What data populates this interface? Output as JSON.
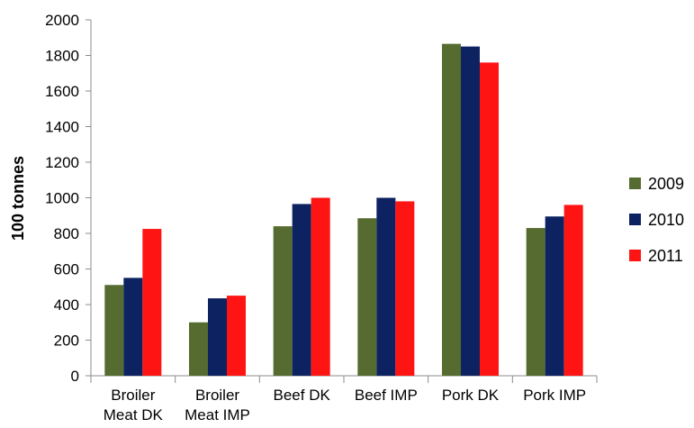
{
  "chart_data": {
    "type": "bar",
    "title": "",
    "xlabel": "",
    "ylabel": "100 tonnes",
    "ylim": [
      0,
      2000
    ],
    "yticks": [
      0,
      200,
      400,
      600,
      800,
      1000,
      1200,
      1400,
      1600,
      1800,
      2000
    ],
    "categories": [
      [
        "Broiler",
        "Meat DK"
      ],
      [
        "Broiler",
        "Meat IMP"
      ],
      [
        "Beef DK"
      ],
      [
        "Beef IMP"
      ],
      [
        "Pork DK"
      ],
      [
        "Pork IMP"
      ]
    ],
    "series": [
      {
        "name": "2009",
        "color": "#556b2f",
        "values": [
          510,
          300,
          840,
          885,
          1865,
          830
        ]
      },
      {
        "name": "2010",
        "color": "#0d2261",
        "values": [
          550,
          435,
          965,
          1000,
          1850,
          895
        ]
      },
      {
        "name": "2011",
        "color": "#ff1414",
        "values": [
          825,
          450,
          1000,
          980,
          1760,
          960
        ]
      }
    ],
    "grid": false,
    "legend_position": "right"
  }
}
